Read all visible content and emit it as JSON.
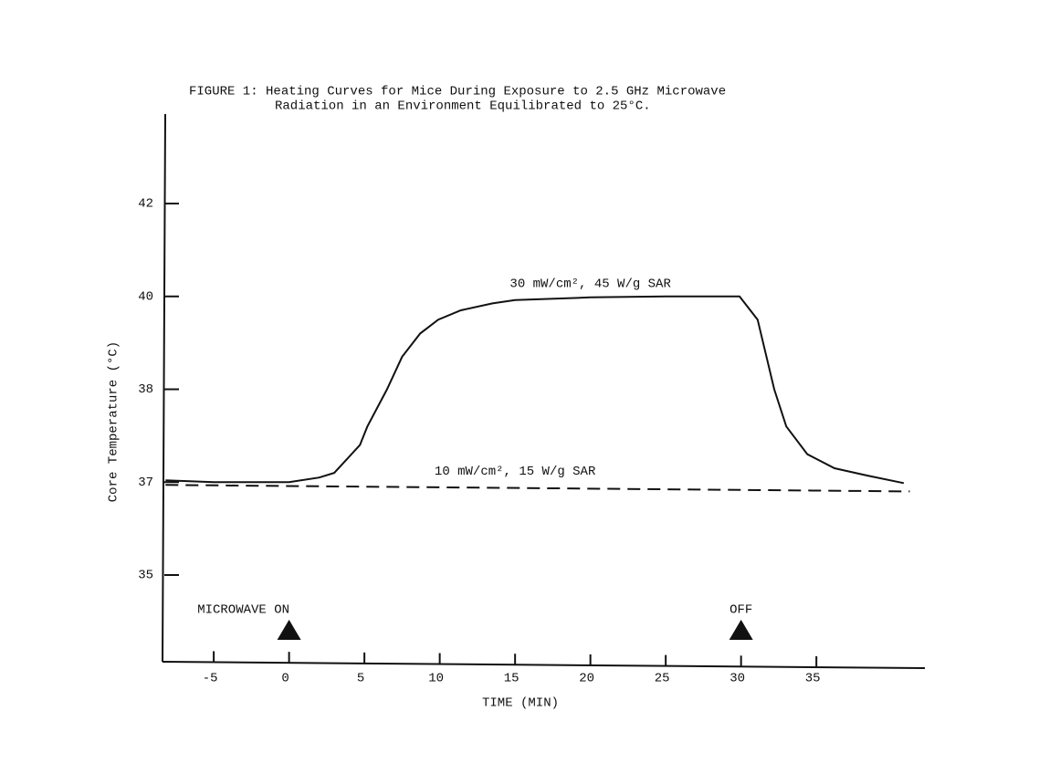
{
  "chart_data": {
    "type": "line",
    "title": "FIGURE 1:  Heating Curves for Mice During Exposure to 2.5 GHz Microwave",
    "subtitle": "Radiation in an Environment Equilibrated to 25°C.",
    "x_label": "TIME (MIN)",
    "y_label": "Core Temperature (°C)",
    "xlim": [
      -8.4,
      42.2
    ],
    "xticks": [
      -5,
      0,
      5,
      10,
      15,
      20,
      25,
      30,
      35
    ],
    "ylim": [
      33.1,
      43.9
    ],
    "yticks": [
      35,
      37,
      38,
      40,
      42
    ],
    "series": [
      {
        "name": "30 mW/cm², 45 W/g SAR",
        "color": "#111111",
        "style": "solid",
        "x": [
          -8.2,
          -5,
          0,
          2,
          3,
          4.7,
          5.2,
          6.5,
          7.5,
          8.7,
          9.9,
          11.4,
          13.5,
          15,
          20,
          25,
          29.9,
          31.1,
          32.2,
          33,
          34.4,
          36.2,
          38.4,
          40.8
        ],
        "values": [
          37.02,
          37.0,
          37.0,
          37.05,
          37.1,
          37.4,
          37.6,
          38.0,
          38.7,
          39.2,
          39.5,
          39.7,
          39.85,
          39.92,
          39.98,
          40.0,
          40.0,
          39.5,
          38.0,
          37.6,
          37.3,
          37.15,
          37.07,
          36.98
        ]
      },
      {
        "name": "10 mW/cm², 15 W/g SAR",
        "color": "#111111",
        "style": "dashed",
        "x": [
          -8.2,
          41.2
        ],
        "values": [
          36.94,
          36.8
        ]
      }
    ],
    "markers": [
      {
        "label": "MICROWAVE ON",
        "x": 0
      },
      {
        "label": "OFF",
        "x": 30
      }
    ]
  }
}
